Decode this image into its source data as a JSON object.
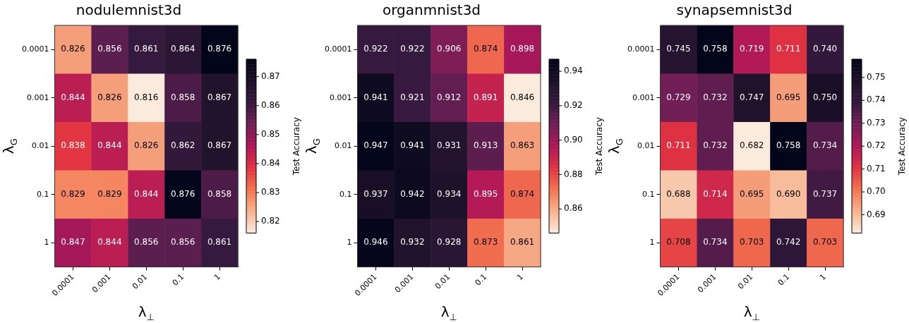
{
  "chart_data": [
    {
      "type": "heatmap",
      "title": "nodulemnist3d",
      "xlabel": "λ$_{⊥}$",
      "ylabel": "λ$_{G}$",
      "clabel": "Test Accuracy",
      "categories": [
        "0.0001",
        "0.001",
        "0.01",
        "0.1",
        "1"
      ],
      "y_categories": [
        "0.0001",
        "0.001",
        "0.01",
        "0.1",
        "1"
      ],
      "cells": [
        [
          0.826,
          0.856,
          0.861,
          0.864,
          0.876
        ],
        [
          0.844,
          0.826,
          0.816,
          0.858,
          0.867
        ],
        [
          0.838,
          0.844,
          0.826,
          0.862,
          0.867
        ],
        [
          0.829,
          0.829,
          0.844,
          0.876,
          0.858
        ],
        [
          0.847,
          0.844,
          0.856,
          0.856,
          0.861
        ]
      ],
      "clim": [
        0.816,
        0.876
      ],
      "cticks": [
        0.82,
        0.83,
        0.84,
        0.85,
        0.86,
        0.87
      ],
      "data_labels": true
    },
    {
      "type": "heatmap",
      "title": "organmnist3d",
      "xlabel": "λ$_{⊥}$",
      "ylabel": "λ$_{G}$",
      "clabel": "Test Accuracy",
      "categories": [
        "0.0001",
        "0.001",
        "0.01",
        "0.1",
        "1"
      ],
      "y_categories": [
        "0.0001",
        "0.001",
        "0.01",
        "0.1",
        "1"
      ],
      "cells": [
        [
          0.922,
          0.922,
          0.906,
          0.874,
          0.898
        ],
        [
          0.941,
          0.921,
          0.912,
          0.891,
          0.846
        ],
        [
          0.947,
          0.941,
          0.931,
          0.913,
          0.863
        ],
        [
          0.937,
          0.942,
          0.934,
          0.895,
          0.874
        ],
        [
          0.946,
          0.932,
          0.928,
          0.873,
          0.861
        ]
      ],
      "clim": [
        0.846,
        0.947
      ],
      "cticks": [
        0.86,
        0.88,
        {
          "value": 0.9,
          "label": "0.90"
        },
        0.92,
        0.94
      ],
      "data_labels": true
    },
    {
      "type": "heatmap",
      "title": "synapsemnist3d",
      "xlabel": "λ$_{⊥}$",
      "ylabel": "λ$_{G}$",
      "clabel": "Test Accuracy",
      "categories": [
        "0.0001",
        "0.001",
        "0.01",
        "0.1",
        "1"
      ],
      "y_categories": [
        "0.0001",
        "0.001",
        "0.01",
        "0.1",
        "1"
      ],
      "cells": [
        [
          0.745,
          0.758,
          0.719,
          0.711,
          0.74
        ],
        [
          0.729,
          0.732,
          0.747,
          0.695,
          0.75
        ],
        [
          0.711,
          0.732,
          0.682,
          0.758,
          0.734
        ],
        [
          0.688,
          0.714,
          0.695,
          0.69,
          0.737
        ],
        [
          0.708,
          0.734,
          0.703,
          0.742,
          0.703
        ]
      ],
      "cell_labels": [
        [
          "0.745",
          "0.758",
          "0.719",
          "0.711",
          "0.740"
        ],
        [
          "0.729",
          "0.732",
          "0.747",
          "0.695",
          "0.750"
        ],
        [
          "0.711",
          "0.732",
          "0.682",
          "0.758",
          "0.734"
        ],
        [
          "0.688",
          "0.714",
          "0.695",
          "0.690",
          "0.737"
        ],
        [
          "0.708",
          "0.734",
          "0.703",
          "0.742",
          "0.703"
        ]
      ],
      "clim": [
        0.682,
        0.758
      ],
      "cticks": [
        0.69,
        {
          "value": 0.7,
          "label": "0.70"
        },
        0.71,
        0.72,
        0.73,
        0.74,
        0.75
      ],
      "data_labels": true
    }
  ]
}
